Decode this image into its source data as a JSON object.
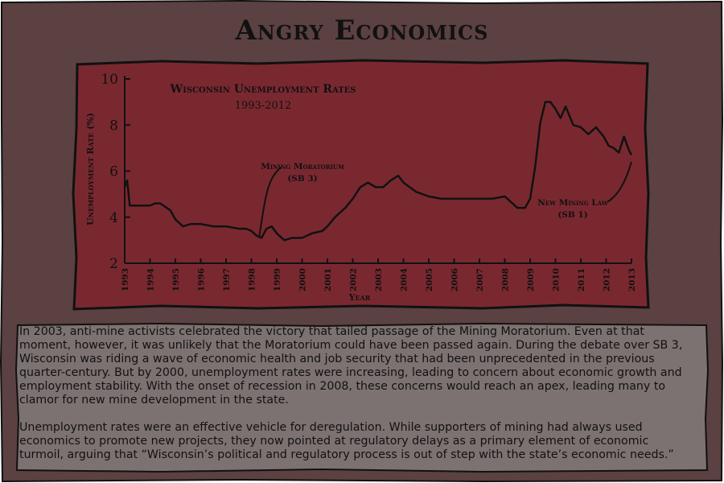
{
  "page": {
    "title": "Angry Economics",
    "paragraphs": [
      "In 2003, anti-mine activists celebrated the victory that tailed passage of the Mining Moratorium. Even at that moment, however, it was unlikely that the Moratorium could have been passed again. During the debate over SB 3, Wisconsin was riding a wave of economic health and job security that had been unprecedented in the previous quarter-century. But by 2000, unemployment rates were increasing, leading to concern about economic growth and employment stability. With the onset of recession in 2008, these concerns would reach an apex, leading many to clamor for new mine development in the state.",
      "Unemployment rates were an effective vehicle for deregulation. While supporters of mining had always used economics to promote new projects, they now pointed at regulatory delays as a primary element of economic turmoil, arguing that “Wisconsin’s political and regulatory process is out of step with the state’s economic needs.”"
    ]
  },
  "colors": {
    "outer_background": "#5b4141",
    "plot_background": "#7a2830",
    "line": "#111111",
    "caption_background": "#7d7272"
  },
  "chart_data": {
    "type": "line",
    "title": "Wisconsin Unemployment Rates",
    "subtitle": "1993-2012",
    "xlabel": "Year",
    "ylabel": "Unemployment Rate (%)",
    "xlim": [
      1993,
      2013
    ],
    "ylim": [
      2,
      10
    ],
    "x_ticks": [
      "1993",
      "1994",
      "1995",
      "1996",
      "1997",
      "1998",
      "1999",
      "2000",
      "2001",
      "2002",
      "2003",
      "2004",
      "2005",
      "2006",
      "2007",
      "2008",
      "2009",
      "2010",
      "2011",
      "2012",
      "2013"
    ],
    "y_ticks": [
      "2",
      "4",
      "6",
      "8",
      "10"
    ],
    "grid": false,
    "series": [
      {
        "x": [
          1993.0,
          1993.1,
          1993.2,
          1993.5,
          1994.0,
          1994.2,
          1994.4,
          1994.8,
          1995.0,
          1995.3,
          1995.6,
          1996.0,
          1996.5,
          1997.0,
          1997.5,
          1997.8,
          1998.0,
          1998.2,
          1998.4,
          1998.6,
          1998.8,
          1999.0,
          1999.3,
          1999.6,
          2000.0,
          2000.4,
          2000.8,
          2001.0,
          2001.3,
          2001.7,
          2002.0,
          2002.3,
          2002.6,
          2002.9,
          2003.2,
          2003.5,
          2003.8,
          2004.0,
          2004.5,
          2005.0,
          2005.5,
          2006.0,
          2006.5,
          2007.0,
          2007.5,
          2008.0,
          2008.2,
          2008.5,
          2008.8,
          2009.0,
          2009.2,
          2009.4,
          2009.6,
          2009.8,
          2010.0,
          2010.2,
          2010.4,
          2010.7,
          2011.0,
          2011.3,
          2011.6,
          2011.9,
          2012.1,
          2012.3,
          2012.5,
          2012.7,
          2012.9,
          2013.0
        ],
        "values": [
          5.3,
          5.6,
          4.5,
          4.5,
          4.5,
          4.6,
          4.6,
          4.3,
          3.9,
          3.6,
          3.7,
          3.7,
          3.6,
          3.6,
          3.5,
          3.5,
          3.4,
          3.2,
          3.1,
          3.5,
          3.6,
          3.3,
          3.0,
          3.1,
          3.1,
          3.3,
          3.4,
          3.6,
          4.0,
          4.4,
          4.8,
          5.3,
          5.5,
          5.3,
          5.3,
          5.6,
          5.8,
          5.5,
          5.1,
          4.9,
          4.8,
          4.8,
          4.8,
          4.8,
          4.8,
          4.9,
          4.7,
          4.4,
          4.4,
          4.8,
          6.2,
          8.1,
          9.0,
          9.0,
          8.7,
          8.3,
          8.8,
          8.0,
          7.9,
          7.6,
          7.9,
          7.5,
          7.1,
          7.0,
          6.8,
          7.5,
          6.9,
          6.7
        ]
      }
    ],
    "annotations": [
      {
        "text": [
          "Mining Moratorium",
          "(SB 3)"
        ],
        "x": 1998.3,
        "y": 3.1
      },
      {
        "text": [
          "New Mining Law",
          "(SB 1)"
        ],
        "x": 2013.0,
        "y": 6.4
      }
    ]
  }
}
